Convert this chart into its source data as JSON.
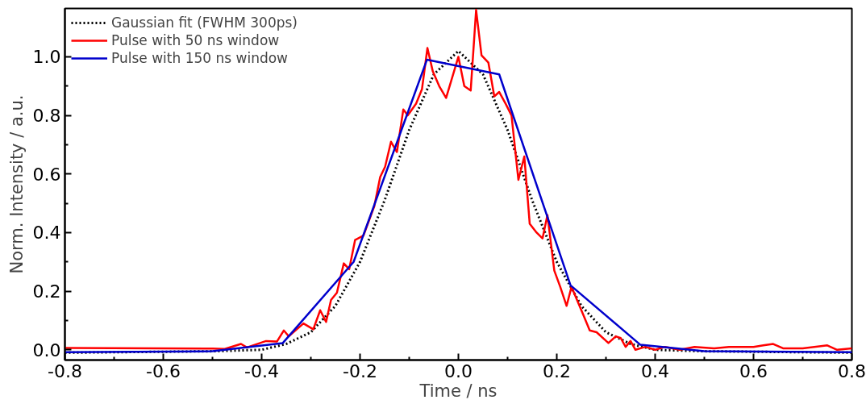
{
  "chart_data": {
    "type": "line",
    "xlabel": "Time / ns",
    "ylabel": "Norm. Intensity / a.u.",
    "xlim": [
      -0.8,
      0.8
    ],
    "ylim": [
      -0.035,
      1.165
    ],
    "xticks": [
      {
        "value": -0.8,
        "label": "-0.8"
      },
      {
        "value": -0.6,
        "label": "-0.6"
      },
      {
        "value": -0.4,
        "label": "-0.4"
      },
      {
        "value": -0.2,
        "label": "-0.2"
      },
      {
        "value": 0,
        "label": "0.0"
      },
      {
        "value": 0.2,
        "label": "0.2"
      },
      {
        "value": 0.4,
        "label": "0.4"
      },
      {
        "value": 0.6,
        "label": "0.6"
      },
      {
        "value": 0.8,
        "label": "0.8"
      }
    ],
    "yticks": [
      {
        "value": 0,
        "label": "0.0"
      },
      {
        "value": 0.2,
        "label": "0.2"
      },
      {
        "value": 0.4,
        "label": "0.4"
      },
      {
        "value": 0.6,
        "label": "0.6"
      },
      {
        "value": 0.8,
        "label": "0.8"
      },
      {
        "value": 1,
        "label": "1.0"
      }
    ],
    "grid": false,
    "legend": "top left",
    "marker": "none",
    "series": [
      {
        "name": "Gaussian fit (FWHM 300ps)",
        "color": "#000000",
        "line_style": "dotted",
        "x": [
          -0.8,
          -0.5,
          -0.4,
          -0.35,
          -0.3,
          -0.25,
          -0.2,
          -0.15,
          -0.1,
          -0.05,
          0,
          0.05,
          0.1,
          0.15,
          0.2,
          0.25,
          0.3,
          0.35,
          0.4,
          0.5,
          0.8
        ],
        "values": [
          -0.01,
          -0.005,
          0.0,
          0.02,
          0.06,
          0.15,
          0.3,
          0.51,
          0.75,
          0.94,
          1.02,
          0.94,
          0.75,
          0.51,
          0.3,
          0.15,
          0.06,
          0.02,
          0.0,
          -0.005,
          -0.01
        ]
      },
      {
        "name": "Pulse with 50 ns window",
        "color": "#ff0000",
        "line_style": "solid",
        "x": [
          -0.8,
          -0.5,
          -0.475,
          -0.442,
          -0.43,
          -0.391,
          -0.369,
          -0.355,
          -0.345,
          -0.315,
          -0.295,
          -0.281,
          -0.269,
          -0.259,
          -0.247,
          -0.233,
          -0.222,
          -0.21,
          -0.193,
          -0.171,
          -0.159,
          -0.149,
          -0.137,
          -0.125,
          -0.112,
          -0.103,
          -0.086,
          -0.074,
          -0.063,
          -0.052,
          -0.039,
          -0.025,
          0.0,
          0.012,
          0.025,
          0.036,
          0.047,
          0.061,
          0.073,
          0.083,
          0.096,
          0.108,
          0.122,
          0.134,
          0.145,
          0.159,
          0.171,
          0.181,
          0.195,
          0.207,
          0.22,
          0.23,
          0.255,
          0.267,
          0.281,
          0.305,
          0.32,
          0.33,
          0.34,
          0.35,
          0.36,
          0.38,
          0.4,
          0.42,
          0.45,
          0.48,
          0.52,
          0.55,
          0.6,
          0.62,
          0.64,
          0.66,
          0.7,
          0.75,
          0.77,
          0.8
        ],
        "values": [
          0.006,
          0.004,
          0.003,
          0.02,
          0.008,
          0.03,
          0.028,
          0.066,
          0.046,
          0.09,
          0.07,
          0.135,
          0.095,
          0.17,
          0.195,
          0.295,
          0.275,
          0.375,
          0.39,
          0.49,
          0.59,
          0.625,
          0.71,
          0.675,
          0.82,
          0.8,
          0.84,
          0.89,
          1.03,
          0.95,
          0.9,
          0.86,
          1.0,
          0.9,
          0.885,
          1.16,
          1.005,
          0.98,
          0.865,
          0.88,
          0.84,
          0.8,
          0.58,
          0.66,
          0.43,
          0.4,
          0.38,
          0.46,
          0.27,
          0.215,
          0.15,
          0.215,
          0.115,
          0.066,
          0.06,
          0.023,
          0.046,
          0.04,
          0.01,
          0.03,
          0.0,
          0.01,
          0.0,
          0.01,
          0.0,
          0.01,
          0.005,
          0.01,
          0.01,
          0.015,
          0.02,
          0.005,
          0.005,
          0.015,
          0.0,
          0.005
        ]
      },
      {
        "name": "Pulse with 150 ns window",
        "color": "#0000cc",
        "line_style": "solid",
        "x": [
          -0.8,
          -0.5,
          -0.357,
          -0.213,
          -0.064,
          0.083,
          0.228,
          0.37,
          0.5,
          0.8
        ],
        "values": [
          -0.008,
          -0.005,
          0.023,
          0.3,
          0.99,
          0.94,
          0.22,
          0.017,
          -0.005,
          -0.008
        ]
      }
    ]
  }
}
